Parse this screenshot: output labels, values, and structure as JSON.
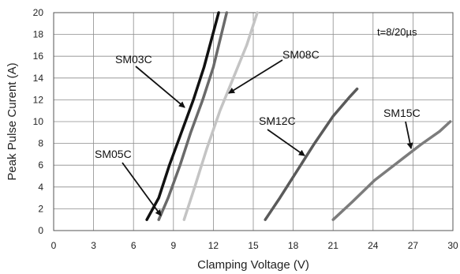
{
  "chart_data": {
    "type": "line",
    "xlabel": "Clamping Voltage (V)",
    "ylabel": "Peak  Pulse Curent (A)",
    "xlim": [
      0,
      30
    ],
    "ylim": [
      0,
      20
    ],
    "xticks": [
      0,
      3,
      6,
      9,
      12,
      15,
      18,
      21,
      24,
      27,
      30
    ],
    "yticks": [
      0,
      2,
      4,
      6,
      8,
      10,
      12,
      14,
      16,
      18,
      20
    ],
    "grid": true,
    "condition": "t=8/20µs",
    "series": [
      {
        "name": "SM03C",
        "color": "#111111",
        "x": [
          7.0,
          7.9,
          8.7,
          9.6,
          10.5,
          11.3,
          12.4
        ],
        "y": [
          1,
          3,
          6,
          9,
          12,
          15,
          20
        ]
      },
      {
        "name": "SM05C",
        "color": "#6a6a6a",
        "x": [
          7.9,
          8.6,
          9.5,
          10.3,
          11.2,
          12.0,
          13.0
        ],
        "y": [
          1,
          3,
          6,
          9,
          12,
          15,
          20
        ]
      },
      {
        "name": "SM08C",
        "color": "#c4c4c4",
        "x": [
          9.8,
          10.6,
          11.5,
          12.5,
          13.5,
          14.5,
          15.3
        ],
        "y": [
          1,
          4,
          7.5,
          11,
          14,
          17,
          20
        ]
      },
      {
        "name": "SM12C",
        "color": "#5a5a5a",
        "x": [
          15.9,
          17.0,
          18.3,
          19.6,
          21.0,
          22.2,
          22.8
        ],
        "y": [
          1,
          3,
          5.5,
          8,
          10.5,
          12.2,
          13
        ]
      },
      {
        "name": "SM15C",
        "color": "#7c7c7c",
        "x": [
          21.0,
          22.5,
          24.1,
          25.9,
          27.6,
          29.0,
          29.8
        ],
        "y": [
          1,
          2.7,
          4.6,
          6.3,
          7.9,
          9.1,
          10
        ]
      }
    ]
  }
}
